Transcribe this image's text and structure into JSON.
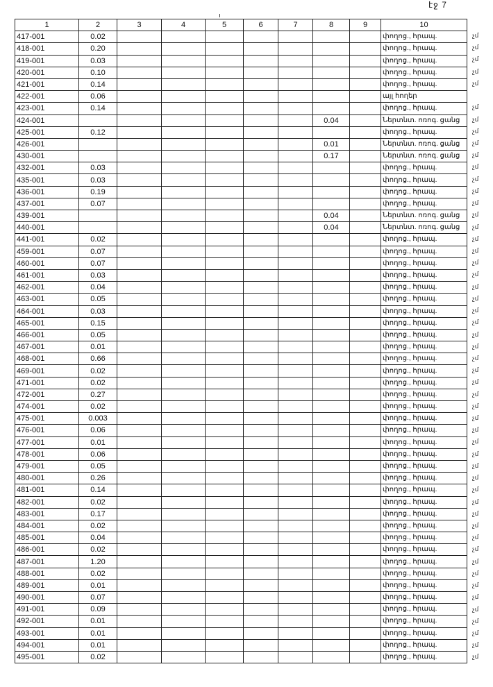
{
  "page_label": "էջ 7",
  "columns": [
    "1",
    "2",
    "3",
    "4",
    "5",
    "6",
    "7",
    "8",
    "9",
    "10"
  ],
  "side_mark": "չմ",
  "rows": [
    {
      "c1": "417-001",
      "c2": "0.02",
      "c8": "",
      "c10": "փողոց., հրապ.",
      "mark": true
    },
    {
      "c1": "418-001",
      "c2": "0.20",
      "c8": "",
      "c10": "փողոց., հրապ.",
      "mark": true
    },
    {
      "c1": "419-001",
      "c2": "0.03",
      "c8": "",
      "c10": "փողոց., հրապ.",
      "mark": true
    },
    {
      "c1": "420-001",
      "c2": "0.10",
      "c8": "",
      "c10": "փողոց., հրապ.",
      "mark": true
    },
    {
      "c1": "421-001",
      "c2": "0.14",
      "c8": "",
      "c10": "փողոց., հրապ.",
      "mark": true
    },
    {
      "c1": "422-001",
      "c2": "0.06",
      "c8": "",
      "c10": "այլ հողեր",
      "mark": false
    },
    {
      "c1": "423-001",
      "c2": "0.14",
      "c8": "",
      "c10": "փողոց., հրապ.",
      "mark": true
    },
    {
      "c1": "424-001",
      "c2": "",
      "c8": "0.04",
      "c10": "Ներտնտ. ոռոգ. ցանց",
      "mark": true
    },
    {
      "c1": "425-001",
      "c2": "0.12",
      "c8": "",
      "c10": "փողոց., հրապ.",
      "mark": true
    },
    {
      "c1": "426-001",
      "c2": "",
      "c8": "0.01",
      "c10": "Ներտնտ. ոռոգ. ցանց",
      "mark": true
    },
    {
      "c1": "430-001",
      "c2": "",
      "c8": "0.17",
      "c10": "Ներտնտ. ոռոգ. ցանց",
      "mark": true
    },
    {
      "c1": "432-001",
      "c2": "0.03",
      "c8": "",
      "c10": "փողոց., հրապ.",
      "mark": true
    },
    {
      "c1": "435-001",
      "c2": "0.03",
      "c8": "",
      "c10": "փողոց., հրապ.",
      "mark": true
    },
    {
      "c1": "436-001",
      "c2": "0.19",
      "c8": "",
      "c10": "փողոց., հրապ.",
      "mark": true
    },
    {
      "c1": "437-001",
      "c2": "0.07",
      "c8": "",
      "c10": "փողոց., հրապ.",
      "mark": true
    },
    {
      "c1": "439-001",
      "c2": "",
      "c8": "0.04",
      "c10": "Ներտնտ. ոռոգ. ցանց",
      "mark": true
    },
    {
      "c1": "440-001",
      "c2": "",
      "c8": "0.04",
      "c10": "Ներտնտ. ոռոգ. ցանց",
      "mark": true
    },
    {
      "c1": "441-001",
      "c2": "0.02",
      "c8": "",
      "c10": "փողոց., հրապ.",
      "mark": true
    },
    {
      "c1": "459-001",
      "c2": "0.07",
      "c8": "",
      "c10": "փողոց., հրապ.",
      "mark": true
    },
    {
      "c1": "460-001",
      "c2": "0.07",
      "c8": "",
      "c10": "փողոց., հրապ.",
      "mark": true
    },
    {
      "c1": "461-001",
      "c2": "0.03",
      "c8": "",
      "c10": "փողոց., հրապ.",
      "mark": true
    },
    {
      "c1": "462-001",
      "c2": "0.04",
      "c8": "",
      "c10": "փողոց., հրապ.",
      "mark": true
    },
    {
      "c1": "463-001",
      "c2": "0.05",
      "c8": "",
      "c10": "փողոց., հրապ.",
      "mark": true
    },
    {
      "c1": "464-001",
      "c2": "0.03",
      "c8": "",
      "c10": "փողոց., հրապ.",
      "mark": true
    },
    {
      "c1": "465-001",
      "c2": "0.15",
      "c8": "",
      "c10": "փողոց., հրապ.",
      "mark": true
    },
    {
      "c1": "466-001",
      "c2": "0.05",
      "c8": "",
      "c10": "փողոց., հրապ.",
      "mark": true
    },
    {
      "c1": "467-001",
      "c2": "0.01",
      "c8": "",
      "c10": "փողոց., հրապ.",
      "mark": true
    },
    {
      "c1": "468-001",
      "c2": "0.66",
      "c8": "",
      "c10": "փողոց., հրապ.",
      "mark": true
    },
    {
      "c1": "469-001",
      "c2": "0.02",
      "c8": "",
      "c10": "փողոց., հրապ.",
      "mark": true
    },
    {
      "c1": "471-001",
      "c2": "0.02",
      "c8": "",
      "c10": "փողոց., հրապ.",
      "mark": true
    },
    {
      "c1": "472-001",
      "c2": "0.27",
      "c8": "",
      "c10": "փողոց., հրապ.",
      "mark": true
    },
    {
      "c1": "474-001",
      "c2": "0.02",
      "c8": "",
      "c10": "փողոց., հրապ.",
      "mark": true
    },
    {
      "c1": "475-001",
      "c2": "0.003",
      "c8": "",
      "c10": "փողոց., հրապ.",
      "mark": true
    },
    {
      "c1": "476-001",
      "c2": "0.06",
      "c8": "",
      "c10": "փողոց., հրապ.",
      "mark": true
    },
    {
      "c1": "477-001",
      "c2": "0.01",
      "c8": "",
      "c10": "փողոց., հրապ.",
      "mark": true
    },
    {
      "c1": "478-001",
      "c2": "0.06",
      "c8": "",
      "c10": "փողոց., հրապ.",
      "mark": true
    },
    {
      "c1": "479-001",
      "c2": "0.05",
      "c8": "",
      "c10": "փողոց., հրապ.",
      "mark": true
    },
    {
      "c1": "480-001",
      "c2": "0.26",
      "c8": "",
      "c10": "փողոց., հրապ.",
      "mark": true
    },
    {
      "c1": "481-001",
      "c2": "0.14",
      "c8": "",
      "c10": "փողոց., հրապ.",
      "mark": true
    },
    {
      "c1": "482-001",
      "c2": "0.02",
      "c8": "",
      "c10": "փողոց., հրապ.",
      "mark": true
    },
    {
      "c1": "483-001",
      "c2": "0.17",
      "c8": "",
      "c10": "փողոց., հրապ.",
      "mark": true
    },
    {
      "c1": "484-001",
      "c2": "0.02",
      "c8": "",
      "c10": "փողոց., հրապ.",
      "mark": true
    },
    {
      "c1": "485-001",
      "c2": "0.04",
      "c8": "",
      "c10": "փողոց., հրապ.",
      "mark": true
    },
    {
      "c1": "486-001",
      "c2": "0.02",
      "c8": "",
      "c10": "փողոց., հրապ.",
      "mark": true
    },
    {
      "c1": "487-001",
      "c2": "1.20",
      "c8": "",
      "c10": "փողոց., հրապ.",
      "mark": true
    },
    {
      "c1": "488-001",
      "c2": "0.02",
      "c8": "",
      "c10": "փողոց., հրապ.",
      "mark": true
    },
    {
      "c1": "489-001",
      "c2": "0.01",
      "c8": "",
      "c10": "փողոց., հրապ.",
      "mark": true
    },
    {
      "c1": "490-001",
      "c2": "0.07",
      "c8": "",
      "c10": "փողոց., հրապ.",
      "mark": true
    },
    {
      "c1": "491-001",
      "c2": "0.09",
      "c8": "",
      "c10": "փողոց., հրապ.",
      "mark": true
    },
    {
      "c1": "492-001",
      "c2": "0.01",
      "c8": "",
      "c10": "փողոց., հրապ.",
      "mark": true
    },
    {
      "c1": "493-001",
      "c2": "0.01",
      "c8": "",
      "c10": "փողոց., հրապ.",
      "mark": true
    },
    {
      "c1": "494-001",
      "c2": "0.01",
      "c8": "",
      "c10": "փողոց., հրապ.",
      "mark": true
    },
    {
      "c1": "495-001",
      "c2": "0.02",
      "c8": "",
      "c10": "փողոց., հրապ.",
      "mark": true
    }
  ]
}
